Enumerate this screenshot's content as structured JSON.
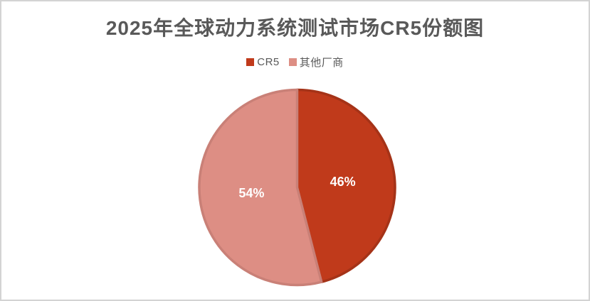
{
  "chart_data": {
    "type": "pie",
    "title": "2025年全球动力系统测试市场CR5份额图",
    "legend_position": "top",
    "start_angle_deg": 0,
    "direction": "clockwise",
    "slices": [
      {
        "id": "cr5",
        "name": "CR5",
        "value": 46,
        "label": "46%",
        "color": "#C03A1B",
        "border_color": "#A53318"
      },
      {
        "id": "others",
        "name": "其他厂商",
        "value": 54,
        "label": "54%",
        "color": "#DD8E84",
        "border_color": "#C98077"
      }
    ],
    "data_label_color": "#FFFFFF"
  },
  "colors": {
    "title_text": "#595959",
    "legend_text": "#595959",
    "frame_border": "#D3D3D3",
    "background": "#FFFFFF"
  }
}
